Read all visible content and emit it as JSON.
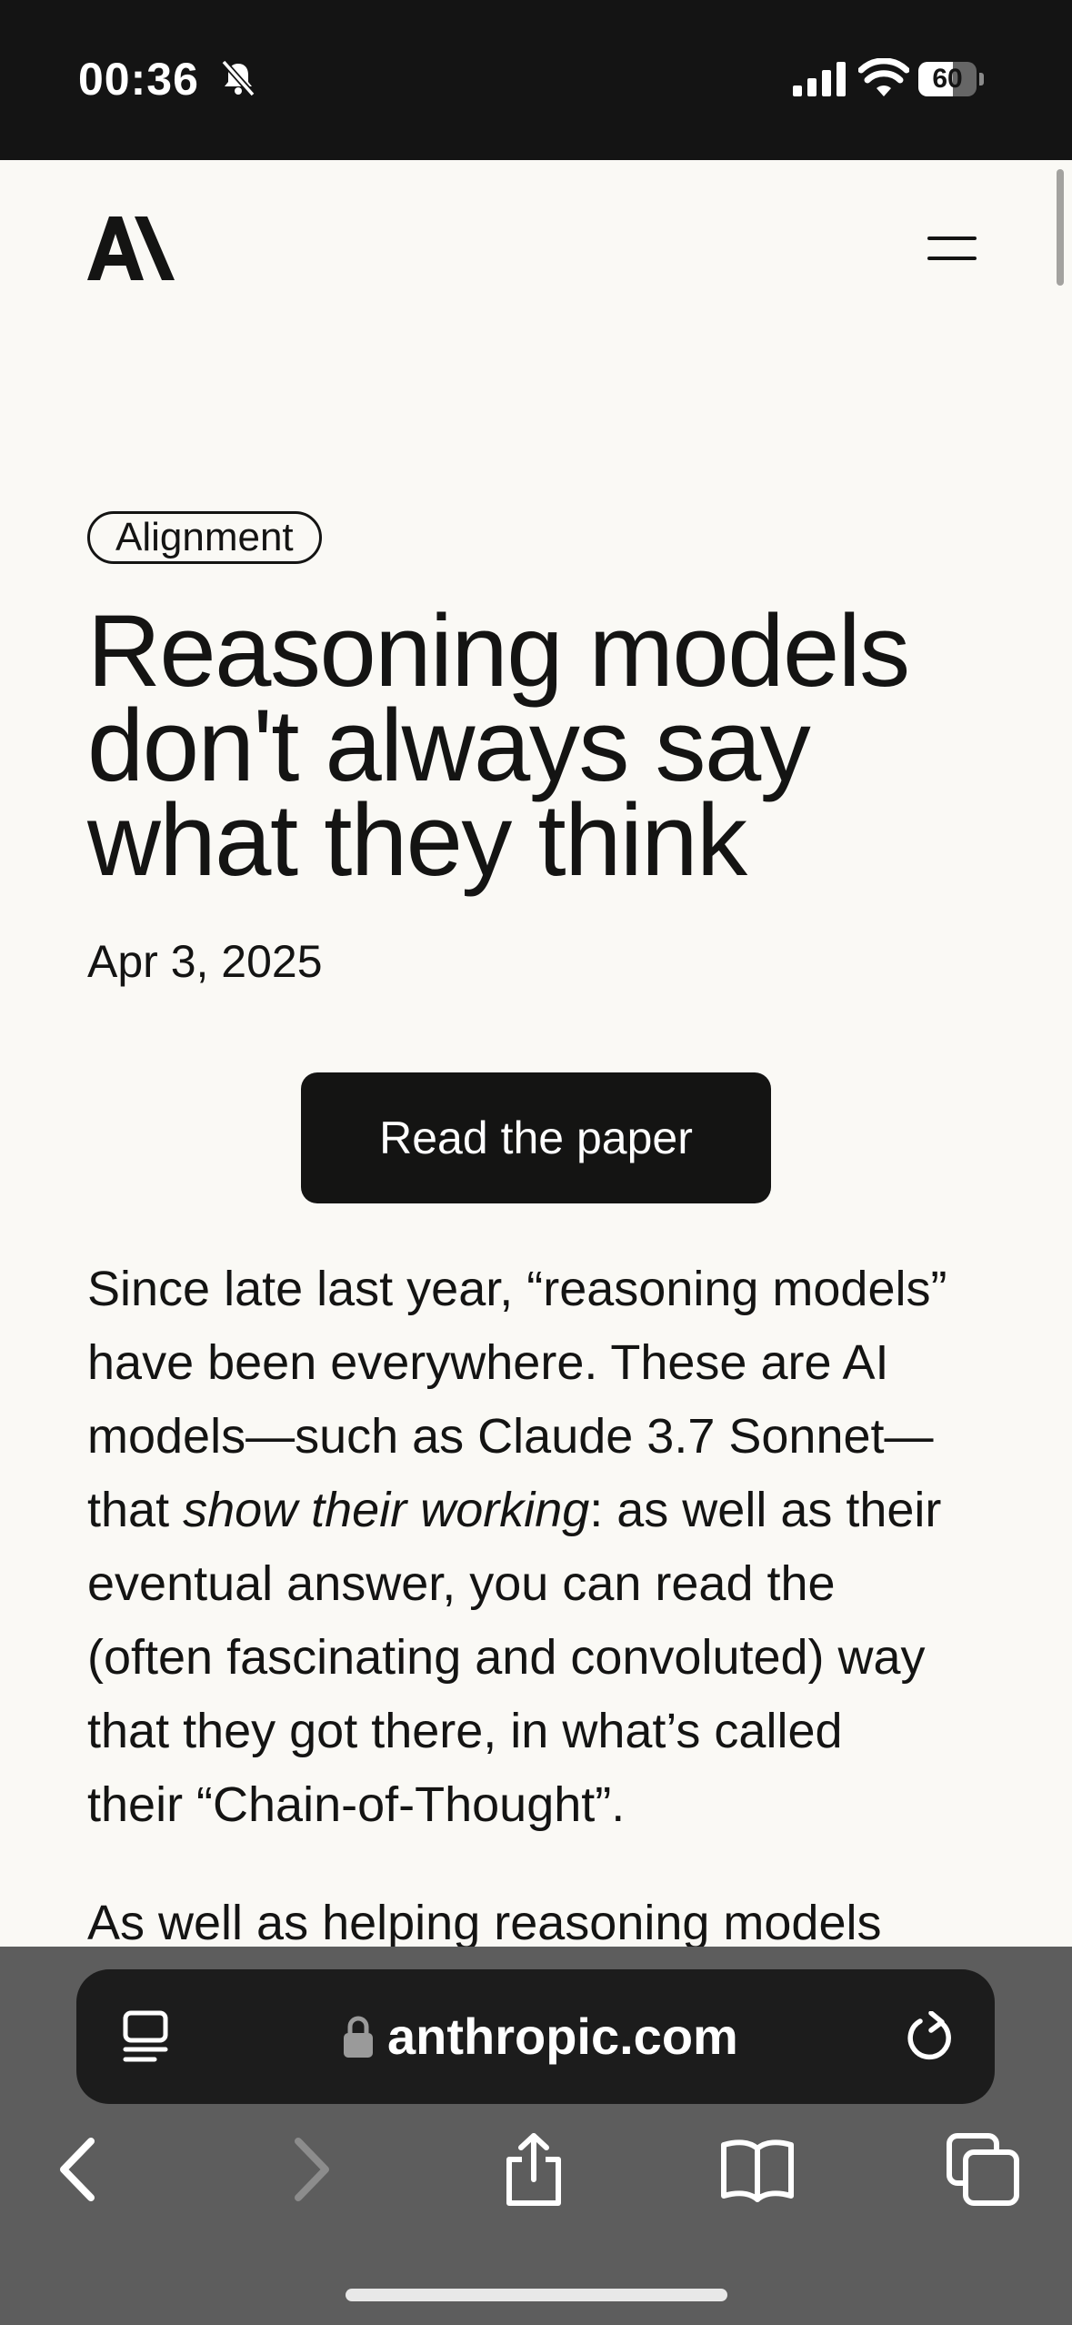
{
  "status_bar": {
    "time": "00:36",
    "battery_text": "60",
    "battery_level": 0.6
  },
  "header": {
    "logo_icon": "anthropic-logo",
    "menu_icon": "hamburger-menu-icon"
  },
  "article": {
    "tag": "Alignment",
    "title_lines": [
      "Reasoning models",
      "don't always say",
      "what they think"
    ],
    "date": "Apr 3, 2025",
    "cta_label": "Read the paper",
    "p1_lines": [
      "Since late last year, “reasoning models”",
      "have been everywhere. These are AI",
      "models—such as Claude 3.7 Sonnet—"
    ],
    "p1_line4_before": "that ",
    "p1_line4_italic": "show their working",
    "p1_line4_after": ": as well as their",
    "p1_lines_rest": [
      "eventual answer, you can read the",
      "(often fascinating and convoluted) way",
      "that they got there, in what’s called",
      "their “Chain-of-Thought”."
    ],
    "p2_start": "As well as helping reasoning models"
  },
  "browser": {
    "url": "anthropic.com",
    "icons": [
      "reader-view-icon",
      "lock-icon",
      "reload-icon",
      "back-icon",
      "forward-icon",
      "share-icon",
      "bookmarks-icon",
      "tabs-icon"
    ]
  }
}
